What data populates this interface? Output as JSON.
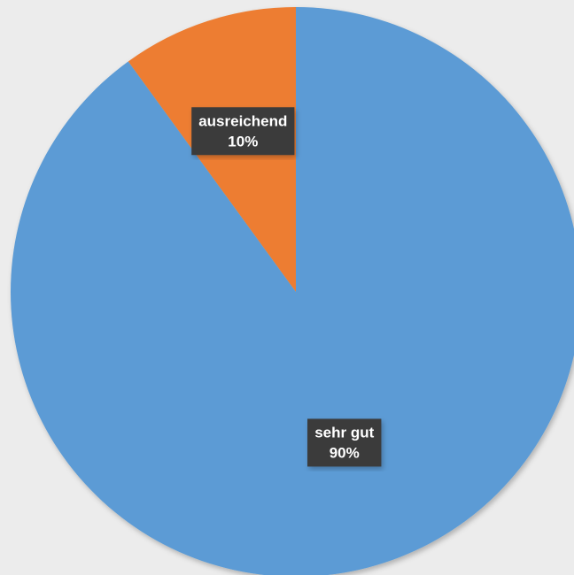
{
  "chart_data": {
    "type": "pie",
    "title": "",
    "slices": [
      {
        "label": "ausreichend",
        "value": 10,
        "percent_label": "10%",
        "color": "#ed7d31"
      },
      {
        "label": "sehr gut",
        "value": 90,
        "percent_label": "90%",
        "color": "#5b9bd5"
      }
    ],
    "start_angle_deg": 0,
    "direction": "counterclockwise",
    "data_labels": true,
    "legend": "none"
  },
  "colors": {
    "background": "#ececec",
    "label_box": "#3b3b3b",
    "label_text": "#ffffff"
  }
}
